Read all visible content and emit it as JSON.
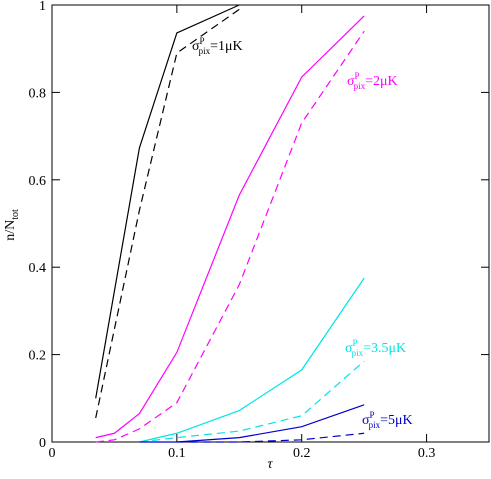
{
  "chart_data": {
    "type": "line",
    "xlabel": "τ",
    "ylabel": "n/N",
    "ylabel_sub": "tot",
    "xlim": [
      0,
      0.35
    ],
    "ylim": [
      0,
      1
    ],
    "xticks": [
      0,
      0.1,
      0.2,
      0.3
    ],
    "yticks": [
      0,
      0.2,
      0.4,
      0.6,
      0.8,
      1
    ],
    "series": [
      {
        "color": "#000000",
        "dashed": false,
        "x": [
          0.035,
          0.07,
          0.1,
          0.15
        ],
        "values": [
          0.1,
          0.673,
          0.936,
          1.0
        ]
      },
      {
        "color": "#000000",
        "dashed": true,
        "x": [
          0.035,
          0.07,
          0.1,
          0.15
        ],
        "values": [
          0.055,
          0.53,
          0.89,
          0.99
        ]
      },
      {
        "color": "#ff00ff",
        "dashed": false,
        "x": [
          0.035,
          0.05,
          0.07,
          0.1,
          0.15,
          0.2,
          0.25
        ],
        "values": [
          0.01,
          0.02,
          0.065,
          0.205,
          0.565,
          0.835,
          0.975
        ]
      },
      {
        "color": "#ff00ff",
        "dashed": true,
        "x": [
          0.035,
          0.05,
          0.07,
          0.1,
          0.15,
          0.2,
          0.25
        ],
        "values": [
          0.0,
          0.005,
          0.03,
          0.09,
          0.36,
          0.73,
          0.94
        ]
      },
      {
        "color": "#00e5e5",
        "dashed": false,
        "x": [
          0.07,
          0.1,
          0.15,
          0.2,
          0.25
        ],
        "values": [
          0.0,
          0.02,
          0.072,
          0.165,
          0.375
        ]
      },
      {
        "color": "#00e5e5",
        "dashed": true,
        "x": [
          0.07,
          0.1,
          0.15,
          0.2,
          0.25
        ],
        "values": [
          0.0,
          0.01,
          0.025,
          0.06,
          0.185
        ]
      },
      {
        "color": "#0000cc",
        "dashed": false,
        "x": [
          0.07,
          0.1,
          0.15,
          0.2,
          0.25
        ],
        "values": [
          0.0,
          0.0,
          0.01,
          0.035,
          0.085
        ]
      },
      {
        "color": "#0000cc",
        "dashed": true,
        "x": [
          0.1,
          0.15,
          0.2,
          0.25
        ],
        "values": [
          0.0,
          0.0,
          0.005,
          0.02
        ]
      }
    ],
    "annotations": [
      {
        "symbol": "σ",
        "sup": "P",
        "sub": "pix",
        "text": "=1μK",
        "color": "#000000"
      },
      {
        "symbol": "σ",
        "sup": "P",
        "sub": "pix",
        "text": "=2μK",
        "color": "#ff00ff"
      },
      {
        "symbol": "σ",
        "sup": "P",
        "sub": "pix",
        "text": "=3.5μK",
        "color": "#00e5e5"
      },
      {
        "symbol": "σ",
        "sup": "P",
        "sub": "pix",
        "text": "=5μK",
        "color": "#0000cc"
      }
    ]
  }
}
